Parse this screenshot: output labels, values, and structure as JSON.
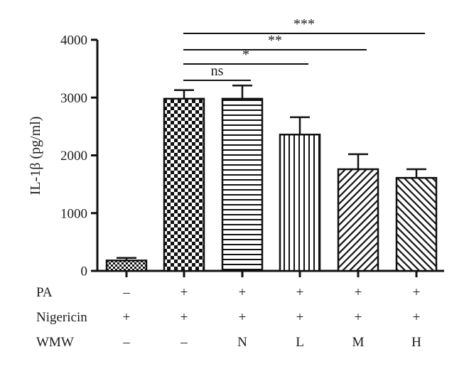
{
  "chart_data": {
    "type": "bar",
    "ylabel": "IL-1β (pg/ml)",
    "ylim": [
      0,
      4000
    ],
    "yticks": [
      0,
      1000,
      2000,
      3000,
      4000
    ],
    "grid": false,
    "bars": [
      {
        "value": 180,
        "error": 45,
        "pattern": "checker-small"
      },
      {
        "value": 2980,
        "error": 150,
        "pattern": "checker-large"
      },
      {
        "value": 2980,
        "error": 230,
        "pattern": "horizontal-lines"
      },
      {
        "value": 2360,
        "error": 300,
        "pattern": "vertical-lines"
      },
      {
        "value": 1760,
        "error": 260,
        "pattern": "diagonal-lines"
      },
      {
        "value": 1610,
        "error": 150,
        "pattern": "diagonal-lines-reverse"
      }
    ],
    "significance": [
      {
        "from": 1,
        "to": 2,
        "label": "ns"
      },
      {
        "from": 1,
        "to": 3,
        "label": "*"
      },
      {
        "from": 1,
        "to": 4,
        "label": "**"
      },
      {
        "from": 1,
        "to": 5,
        "label": "***"
      }
    ],
    "conditions": [
      {
        "name": "PA",
        "values": [
          "–",
          "+",
          "+",
          "+",
          "+",
          "+"
        ]
      },
      {
        "name": "Nigericin",
        "values": [
          "+",
          "+",
          "+",
          "+",
          "+",
          "+"
        ]
      },
      {
        "name": "WMW",
        "values": [
          "–",
          "–",
          "N",
          "L",
          "M",
          "H"
        ]
      }
    ]
  }
}
